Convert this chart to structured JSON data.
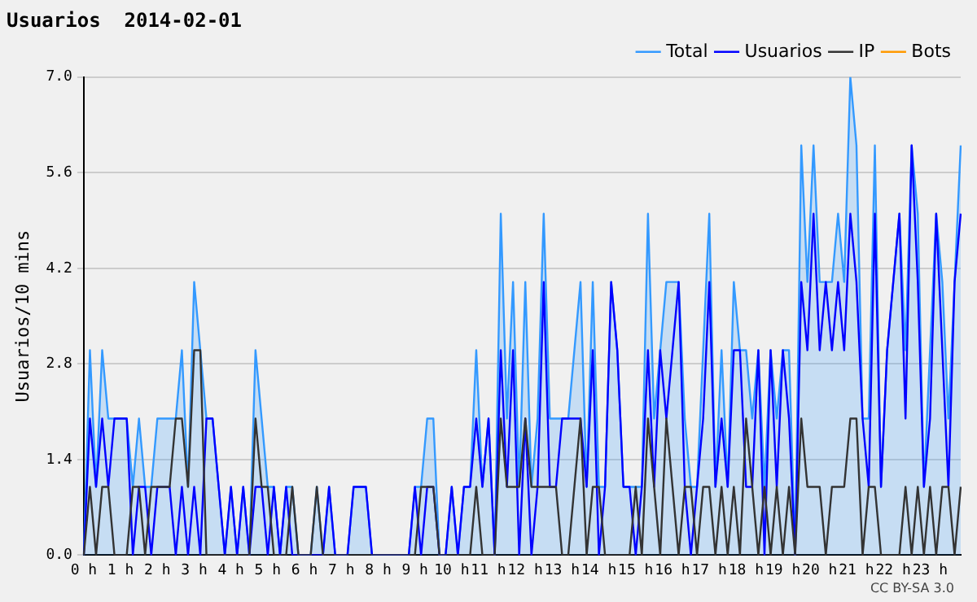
{
  "chart_data": {
    "type": "line",
    "title": "Usuarios  2014-02-01",
    "ylabel": "Usuarios/10 mins",
    "categories": [
      "0 h",
      null,
      null,
      null,
      null,
      null,
      "1 h",
      null,
      null,
      null,
      null,
      null,
      "2 h",
      null,
      null,
      null,
      null,
      null,
      "3 h",
      null,
      null,
      null,
      null,
      null,
      "4 h",
      null,
      null,
      null,
      null,
      null,
      "5 h",
      null,
      null,
      null,
      null,
      null,
      "6 h",
      null,
      null,
      null,
      null,
      null,
      "7 h",
      null,
      null,
      null,
      null,
      null,
      "8 h",
      null,
      null,
      null,
      null,
      null,
      "9 h",
      null,
      null,
      null,
      null,
      null,
      "10 h",
      null,
      null,
      null,
      null,
      null,
      "11 h",
      null,
      null,
      null,
      null,
      null,
      "12 h",
      null,
      null,
      null,
      null,
      null,
      "13 h",
      null,
      null,
      null,
      null,
      null,
      "14 h",
      null,
      null,
      null,
      null,
      null,
      "15 h",
      null,
      null,
      null,
      null,
      null,
      "16 h",
      null,
      null,
      null,
      null,
      null,
      "17 h",
      null,
      null,
      null,
      null,
      null,
      "18 h",
      null,
      null,
      null,
      null,
      null,
      "19 h",
      null,
      null,
      null,
      null,
      null,
      "20 h",
      null,
      null,
      null,
      null,
      null,
      "21 h",
      null,
      null,
      null,
      null,
      null,
      "22 h",
      null,
      null,
      null,
      null,
      null,
      "23 h",
      null,
      null,
      null,
      null,
      null
    ],
    "series": [
      {
        "name": "Total",
        "type": "area",
        "color": "#3399ff",
        "values": [
          0,
          3,
          1,
          3,
          2,
          2,
          2,
          2,
          1,
          2,
          1,
          1,
          2,
          2,
          2,
          2,
          3,
          1,
          4,
          3,
          2,
          2,
          1,
          0,
          1,
          0,
          1,
          0,
          3,
          2,
          1,
          1,
          0,
          1,
          1,
          0,
          0,
          0,
          1,
          0,
          1,
          0,
          0,
          0,
          1,
          1,
          1,
          0,
          0,
          0,
          0,
          0,
          0,
          0,
          1,
          1,
          2,
          2,
          0,
          0,
          1,
          0,
          1,
          1,
          3,
          1,
          2,
          0,
          5,
          2,
          4,
          1,
          4,
          1,
          2,
          5,
          2,
          2,
          2,
          2,
          3,
          4,
          1,
          4,
          1,
          1,
          4,
          3,
          1,
          1,
          1,
          1,
          5,
          2,
          3,
          4,
          4,
          4,
          2,
          1,
          1,
          3,
          5,
          1,
          3,
          1,
          4,
          3,
          3,
          2,
          3,
          1,
          3,
          2,
          3,
          3,
          0,
          6,
          4,
          6,
          4,
          4,
          4,
          5,
          4,
          7,
          6,
          2,
          2,
          6,
          1,
          3,
          4,
          5,
          3,
          6,
          5,
          1,
          3,
          5,
          4,
          2,
          4,
          6
        ]
      },
      {
        "name": "Usuarios",
        "type": "line",
        "color": "#0000ff",
        "values": [
          0,
          2,
          1,
          2,
          1,
          2,
          2,
          2,
          0,
          1,
          1,
          0,
          1,
          1,
          1,
          0,
          1,
          0,
          1,
          0,
          2,
          2,
          1,
          0,
          1,
          0,
          1,
          0,
          1,
          1,
          0,
          1,
          0,
          1,
          0,
          0,
          0,
          0,
          null,
          0,
          1,
          0,
          0,
          0,
          1,
          1,
          1,
          0,
          0,
          0,
          0,
          0,
          0,
          0,
          1,
          0,
          1,
          1,
          0,
          0,
          1,
          0,
          1,
          1,
          2,
          1,
          2,
          0,
          3,
          1,
          3,
          0,
          2,
          0,
          1,
          4,
          1,
          1,
          2,
          2,
          2,
          2,
          1,
          3,
          0,
          1,
          4,
          3,
          1,
          1,
          0,
          1,
          3,
          1,
          3,
          2,
          3,
          4,
          1,
          0,
          1,
          2,
          4,
          1,
          2,
          1,
          3,
          3,
          1,
          1,
          3,
          0,
          3,
          1,
          3,
          2,
          0,
          4,
          3,
          5,
          3,
          4,
          3,
          4,
          3,
          5,
          4,
          2,
          1,
          5,
          1,
          3,
          4,
          5,
          2,
          6,
          4,
          1,
          2,
          5,
          3,
          1,
          4,
          5
        ]
      },
      {
        "name": "IP",
        "type": "line",
        "color": "#333333",
        "values": [
          0,
          1,
          0,
          1,
          1,
          0,
          0,
          0,
          1,
          1,
          0,
          1,
          1,
          1,
          1,
          2,
          2,
          1,
          3,
          3,
          0,
          0,
          null,
          null,
          null,
          null,
          0,
          0,
          2,
          1,
          1,
          0,
          0,
          0,
          1,
          0,
          0,
          0,
          1,
          0,
          0,
          null,
          null,
          null,
          null,
          null,
          null,
          null,
          null,
          null,
          null,
          null,
          null,
          0,
          0,
          1,
          1,
          1,
          0,
          0,
          null,
          null,
          0,
          0,
          1,
          0,
          0,
          0,
          2,
          1,
          1,
          1,
          2,
          1,
          1,
          1,
          1,
          1,
          0,
          0,
          1,
          2,
          0,
          1,
          1,
          0,
          0,
          null,
          0,
          0,
          1,
          0,
          2,
          1,
          0,
          2,
          1,
          0,
          1,
          1,
          0,
          1,
          1,
          0,
          1,
          0,
          1,
          0,
          2,
          1,
          0,
          1,
          0,
          1,
          0,
          1,
          0,
          2,
          1,
          1,
          1,
          0,
          1,
          1,
          1,
          2,
          2,
          0,
          1,
          1,
          0,
          0,
          0,
          0,
          1,
          0,
          1,
          0,
          1,
          0,
          1,
          1,
          0,
          1
        ]
      },
      {
        "name": "Bots",
        "type": "line",
        "color": "#ff9900",
        "values": [
          null,
          null,
          null,
          null,
          null,
          null,
          null,
          null,
          null,
          null,
          null,
          null,
          null,
          null,
          null,
          null,
          null,
          null,
          null,
          null,
          null,
          null,
          null,
          null,
          null,
          null,
          null,
          null,
          null,
          null,
          null,
          null,
          null,
          null,
          null,
          null,
          null,
          null,
          null,
          null,
          null,
          null,
          null,
          null,
          null,
          null,
          null,
          null,
          null,
          null,
          null,
          null,
          null,
          null,
          null,
          null,
          null,
          null,
          null,
          null,
          null,
          null,
          null,
          null,
          null,
          null,
          null,
          null,
          null,
          null,
          null,
          null,
          null,
          null,
          null,
          null,
          null,
          null,
          null,
          null,
          null,
          null,
          null,
          null,
          null,
          null,
          null,
          null,
          null,
          null,
          null,
          null,
          null,
          null,
          null,
          null,
          null,
          null,
          null,
          null,
          null,
          null,
          null,
          null,
          null,
          null,
          null,
          null,
          null,
          null,
          null,
          null,
          null,
          null,
          null,
          null,
          null,
          null,
          null,
          null,
          null,
          null,
          null,
          null,
          null,
          null,
          null,
          null,
          null,
          null,
          null,
          null,
          null,
          null,
          null,
          null,
          null,
          null,
          null,
          null,
          null,
          null,
          null,
          null
        ]
      }
    ],
    "ylim": [
      0,
      7
    ],
    "yticks": [
      {
        "value": 0,
        "label": "0.0"
      },
      {
        "value": 1.4,
        "label": "1.4"
      },
      {
        "value": 2.8,
        "label": "2.8"
      },
      {
        "value": 4.2,
        "label": "4.2"
      },
      {
        "value": 5.6,
        "label": "5.6"
      },
      {
        "value": 7,
        "label": "7.0"
      }
    ],
    "grid": "y",
    "legend": "top right",
    "marker": "none",
    "annotations": [
      "CC BY-SA 3.0"
    ]
  }
}
